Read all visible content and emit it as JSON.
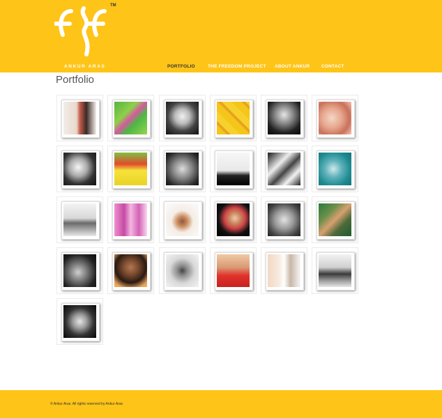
{
  "brand": {
    "name": "ANKUR ARAS",
    "trademark": "TM"
  },
  "nav": {
    "items": [
      {
        "label": "PORTFOLIO",
        "active": true
      },
      {
        "label": "THE FREEDOM PROJECT",
        "active": false
      },
      {
        "label": "ABOUT ANKUR",
        "active": false
      },
      {
        "label": "CONTACT",
        "active": false
      }
    ]
  },
  "page": {
    "title": "Portfolio"
  },
  "colors": {
    "header_bg": "#fec418",
    "nav_active": "#333333",
    "nav_inactive": "#ffffff"
  },
  "gallery": {
    "count": 25,
    "thumbnails": [
      "kiss-photo",
      "green-kids-photo",
      "bw-child-arms-up-photo",
      "yellow-collage-photo",
      "bw-crying-child-photo",
      "baby-feet-photo",
      "bw-laughing-child-photo",
      "yellow-green-table-photo",
      "bw-baby-held-photo",
      "bw-tree-silhouette-photo",
      "bw-hands-photo",
      "teal-hand-photo",
      "bw-interior-photo",
      "pink-girl-photo",
      "father-child-photo",
      "girl-dark-bg-photo",
      "bw-hands-closeup-photo",
      "playground-photo",
      "bw-hand-photo",
      "child-back-photo",
      "bw-screaming-child-photo",
      "red-shirt-child-photo",
      "grandmother-child-photo",
      "bw-group-photo",
      "bw-mother-child-photo"
    ]
  },
  "footer": {
    "copyright": "© Ankur Aras. All rights reserved by Ankur Aras"
  }
}
